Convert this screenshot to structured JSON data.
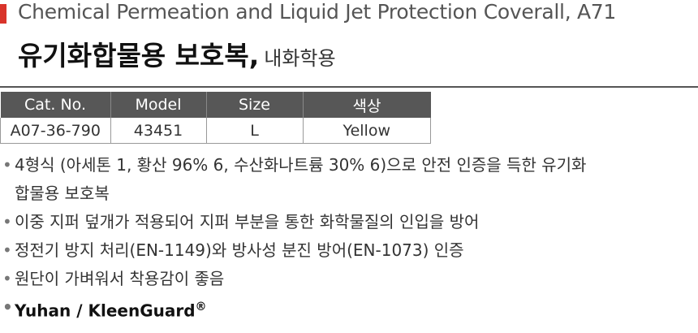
{
  "header": {
    "title": "Chemical Permeation and Liquid Jet Protection Coverall, A71",
    "heading": "유기화합물용 보호복,",
    "subheading": "내화학용"
  },
  "table": {
    "columns": [
      "Cat. No.",
      "Model",
      "Size",
      "색상"
    ],
    "rows": [
      [
        "A07-36-790",
        "43451",
        "L",
        "Yellow"
      ]
    ]
  },
  "features": [
    "4형식 (아세톤 1, 황산 96% 6, 수산화나트륨 30% 6)으로 안전 인증을 득한 유기화합물용 보호복",
    "이중 지퍼 덮개가 적용되어 지퍼 부분을 통한 화학물질의 인입을 방어",
    "정전기 방지 처리(EN-1149)와 방사성 분진 방어(EN-1073) 인증",
    "원단이 가벼워서 착용감이 좋음"
  ],
  "brand": {
    "name": "Yuhan / KleenGuard",
    "mark": "®"
  }
}
